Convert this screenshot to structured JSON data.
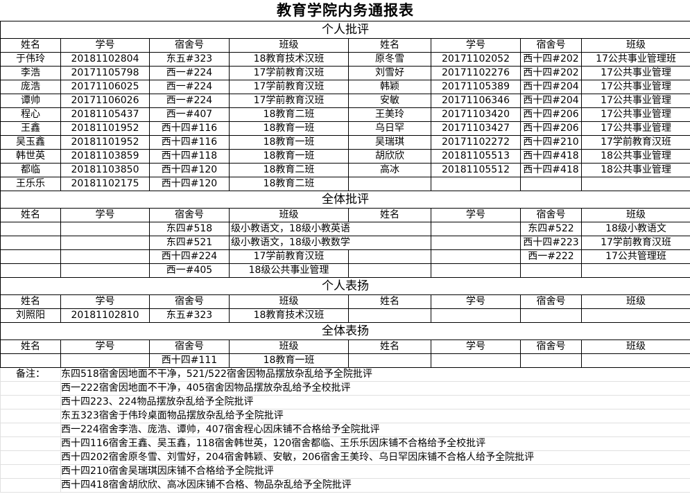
{
  "title": "教育学院内务通报表",
  "headers": [
    "姓名",
    "学号",
    "宿舍号",
    "班级",
    "姓名",
    "学号",
    "宿舍号",
    "班级"
  ],
  "sections": [
    {
      "label": "个人批评",
      "rows": [
        [
          "于伟玲",
          "20181102804",
          "东五#323",
          "18教育技术汉班",
          "原冬雪",
          "20171102052",
          "西十四#202",
          "17公共事业管理班"
        ],
        [
          "李浩",
          "20171105798",
          "西一#224",
          "17学前教育汉班",
          "刘雪好",
          "20171102276",
          "西十四#202",
          "17公共事业管理"
        ],
        [
          "庞浩",
          "20171106025",
          "西一#224",
          "17学前教育汉班",
          "韩颖",
          "20171105389",
          "西十四#204",
          "17公共事业管理"
        ],
        [
          "谭帅",
          "20171106026",
          "西一#224",
          "17学前教育汉班",
          "安敏",
          "20171106346",
          "西十四#204",
          "17公共事业管理"
        ],
        [
          "程心",
          "20181105437",
          "西一#407",
          "18教育二班",
          "王美玲",
          "20171103420",
          "西十四#206",
          "17公共事业管理"
        ],
        [
          "王鑫",
          "20181101952",
          "西十四#116",
          "18教育一班",
          "乌日罕",
          "20171103427",
          "西十四#206",
          "17公共事业管理"
        ],
        [
          "吴玉鑫",
          "20181101952",
          "西十四#116",
          "18教育一班",
          "吴瑞琪",
          "20171102272",
          "西十四#210",
          "17学前教育汉班"
        ],
        [
          "韩世英",
          "20181103859",
          "西十四#118",
          "18教育一班",
          "胡欣欣",
          "20181105513",
          "西十四#418",
          "18公共事业管理"
        ],
        [
          "都临",
          "20181103850",
          "西十四#120",
          "18教育二班",
          "高冰",
          "20181105512",
          "西十四#418",
          "18公共事业管理"
        ],
        [
          "王乐乐",
          "20181102175",
          "西十四#120",
          "18教育二班",
          "",
          "",
          "",
          ""
        ]
      ]
    },
    {
      "label": "全体批评",
      "rows": [
        [
          "",
          "",
          "东四#518",
          "级小教语文，18级小教英语",
          "",
          "",
          "东四#522",
          "18级小教语文"
        ],
        [
          "",
          "",
          "东四#521",
          "级小教语文，18级小教数学",
          "",
          "",
          "西十四#223",
          "17学前教育汉班"
        ],
        [
          "",
          "",
          "西十四#224",
          "17学前教育汉班",
          "",
          "",
          "西一#222",
          "17公共管理班"
        ],
        [
          "",
          "",
          "西一#405",
          "18级公共事业管理",
          "",
          "",
          "",
          ""
        ]
      ]
    },
    {
      "label": "个人表扬",
      "rows": [
        [
          "刘照阳",
          "20181102810",
          "东五#323",
          "18教育技术汉班",
          "",
          "",
          "",
          ""
        ]
      ]
    },
    {
      "label": "全体表扬",
      "rows": [
        [
          "",
          "",
          "西十四#111",
          "18教育一班",
          "",
          "",
          "",
          ""
        ]
      ]
    }
  ],
  "notes": {
    "label": "备注：",
    "lines": [
      "东四518宿舍因地面不干净，521/522宿舍因物品摆放杂乱给予全院批评",
      "西一222宿舍因地面不干净，405宿舍因物品摆放杂乱给予全校批评",
      "西十四223、224物品摆放杂乱给予全院批评",
      "东五323宿舍于伟玲桌面物品摆放杂乱给予全院批评",
      "西一224宿舍李浩、庞浩、谭帅，407宿舍程心因床铺不合格给予全院批评",
      "西十四116宿舍王鑫、吴玉鑫，118宿舍韩世英，120宿舍都临、王乐乐因床铺不合格给予全校批评",
      "西十四202宿舍原冬雪、刘雪好，204宿舍韩颖、安敏，206宿舍王美玲、乌日罕因床铺不合格人给予全院批评",
      "西十四210宿舍吴瑞琪因床铺不合格给予全院批评",
      "西十四418宿舍胡欣欣、高冰因床铺不合格、物品杂乱给予全院批评"
    ]
  }
}
